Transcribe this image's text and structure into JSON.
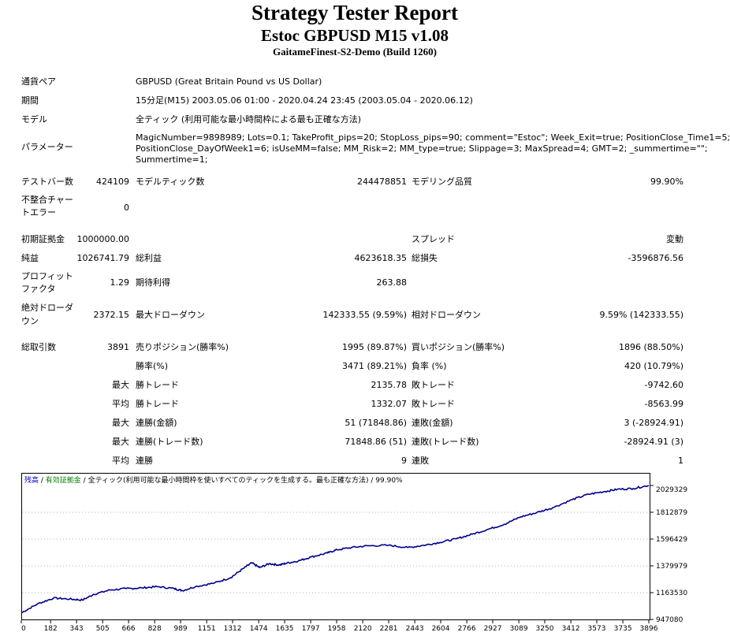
{
  "header": {
    "title": "Strategy Tester Report",
    "subtitle": "Estoc GBPUSD M15 v1.08",
    "server": "GaitameFinest-S2-Demo (Build 1260)"
  },
  "info": {
    "symbol_label": "通貨ペア",
    "symbol_value": "GBPUSD (Great Britain Pound vs US Dollar)",
    "period_label": "期間",
    "period_value": "15分足(M15) 2003.05.06 01:00 - 2020.04.24 23:45 (2003.05.04 - 2020.06.12)",
    "model_label": "モデル",
    "model_value": "全ティック (利用可能な最小時間枠による最も正確な方法)",
    "params_label": "パラメーター",
    "params_line1": "MagicNumber=9898989; Lots=0.1; TakeProfit_pips=20; StopLoss_pips=90; comment=\"Estoc\"; Week_Exit=true; PositionClose_Time1=5;",
    "params_line2": "PositionClose_DayOfWeek1=6; isUseMM=false; MM_Risk=2; MM_type=true; Slippage=3; MaxSpread=4; GMT=2; _summertime=\"\";",
    "params_line3": "Summertime=1;"
  },
  "bars": {
    "bars_label": "テストバー数",
    "bars_value": "424109",
    "ticks_label": "モデルティック数",
    "ticks_value": "244478851",
    "quality_label": "モデリング品質",
    "quality_value": "99.90%",
    "mismatch_label_1": "不整合チャー",
    "mismatch_label_2": "トエラー",
    "mismatch_value": "0"
  },
  "stats": {
    "deposit_label": "初期証拠金",
    "deposit_value": "1000000.00",
    "spread_label": "スプレッド",
    "spread_value": "変動",
    "net_label": "純益",
    "net_value": "1026741.79",
    "gross_profit_label": "総利益",
    "gross_profit_value": "4623618.35",
    "gross_loss_label": "総損失",
    "gross_loss_value": "-3596876.56",
    "pf_label_1": "プロフィット",
    "pf_label_2": "ファクタ",
    "pf_value": "1.29",
    "expected_label": "期待利得",
    "expected_value": "263.88",
    "abs_dd_label_1": "絶対ドローダ",
    "abs_dd_label_2": "ウン",
    "abs_dd_value": "2372.15",
    "max_dd_label": "最大ドローダウン",
    "max_dd_value": "142333.55 (9.59%)",
    "rel_dd_label": "相対ドローダウン",
    "rel_dd_value": "9.59% (142333.55)"
  },
  "trades": {
    "total_label": "総取引数",
    "total_value": "3891",
    "short_label": "売りポジション(勝率%)",
    "short_value": "1995 (89.87%)",
    "long_label": "買いポジション(勝率%)",
    "long_value": "1896 (88.50%)",
    "win_label": "勝率(%)",
    "win_value": "3471 (89.21%)",
    "loss_label": "負率 (%)",
    "loss_value": "420 (10.79%)",
    "largest_label": "最大",
    "largest_win_label": "勝トレード",
    "largest_win_value": "2135.78",
    "largest_loss_label": "敗トレード",
    "largest_loss_value": "-9742.60",
    "average_label": "平均",
    "avg_win_label": "勝トレード",
    "avg_win_value": "1332.07",
    "avg_loss_label": "敗トレード",
    "avg_loss_value": "-8563.99",
    "max_consec_label": "最大",
    "max_consec_wins_label": "連勝(金額)",
    "max_consec_wins_value": "51 (71848.86)",
    "max_consec_losses_label": "連敗(金額)",
    "max_consec_losses_value": "3 (-28924.91)",
    "max_consec2_label": "最大",
    "max_consec_profit_label": "連勝(トレード数)",
    "max_consec_profit_value": "71848.86 (51)",
    "max_consec_loss_label": "連敗(トレード数)",
    "max_consec_loss_value": "-28924.91 (3)",
    "avg_consec_label": "平均",
    "avg_consec_wins_label": "連勝",
    "avg_consec_wins_value": "9",
    "avg_consec_losses_label": "連敗",
    "avg_consec_losses_value": "1"
  },
  "chart_data": {
    "type": "line",
    "legend": {
      "balance": "残高",
      "sep1": " / ",
      "equity": "有効証拠金",
      "sep2": " / ",
      "model": "全ティック(利用可能な最小時間枠を使いすべてのティックを生成する。最も正確な方法)",
      "quality": " / 99.90%"
    },
    "legend_colors": {
      "balance": "#0000cc",
      "equity": "#008000",
      "text": "#000000"
    },
    "line_color": "#00008b",
    "background": "#ffffff",
    "grid": true,
    "ylim": [
      947080,
      2029329
    ],
    "xlim": [
      0,
      3896
    ],
    "y_ticks": [
      "947080",
      "1163530",
      "1379979",
      "1596429",
      "1812879",
      "2029329"
    ],
    "x_ticks": [
      "0",
      "182",
      "343",
      "505",
      "666",
      "828",
      "989",
      "1151",
      "1312",
      "1474",
      "1635",
      "1797",
      "1958",
      "2120",
      "2281",
      "2443",
      "2604",
      "2766",
      "2927",
      "3089",
      "3250",
      "3412",
      "3573",
      "3735",
      "3896"
    ],
    "series": [
      {
        "values": [
          [
            0,
            1000000
          ],
          [
            100,
            1072000
          ],
          [
            200,
            1120000
          ],
          [
            300,
            1112000
          ],
          [
            380,
            1104000
          ],
          [
            450,
            1150000
          ],
          [
            550,
            1185000
          ],
          [
            650,
            1196000
          ],
          [
            750,
            1202000
          ],
          [
            850,
            1212000
          ],
          [
            950,
            1196000
          ],
          [
            1000,
            1180000
          ],
          [
            1080,
            1212000
          ],
          [
            1200,
            1242000
          ],
          [
            1300,
            1285000
          ],
          [
            1380,
            1360000
          ],
          [
            1430,
            1404000
          ],
          [
            1480,
            1366000
          ],
          [
            1540,
            1398000
          ],
          [
            1600,
            1387000
          ],
          [
            1650,
            1402000
          ],
          [
            1720,
            1420000
          ],
          [
            1800,
            1452000
          ],
          [
            1900,
            1484000
          ],
          [
            1960,
            1510000
          ],
          [
            2050,
            1528000
          ],
          [
            2150,
            1542000
          ],
          [
            2280,
            1546000
          ],
          [
            2400,
            1528000
          ],
          [
            2500,
            1546000
          ],
          [
            2600,
            1570000
          ],
          [
            2700,
            1598000
          ],
          [
            2800,
            1636000
          ],
          [
            2900,
            1676000
          ],
          [
            3000,
            1716000
          ],
          [
            3100,
            1776000
          ],
          [
            3200,
            1810000
          ],
          [
            3300,
            1850000
          ],
          [
            3420,
            1915000
          ],
          [
            3520,
            1958000
          ],
          [
            3620,
            1980000
          ],
          [
            3700,
            1998000
          ],
          [
            3800,
            2005000
          ],
          [
            3896,
            2030000
          ]
        ]
      }
    ]
  }
}
